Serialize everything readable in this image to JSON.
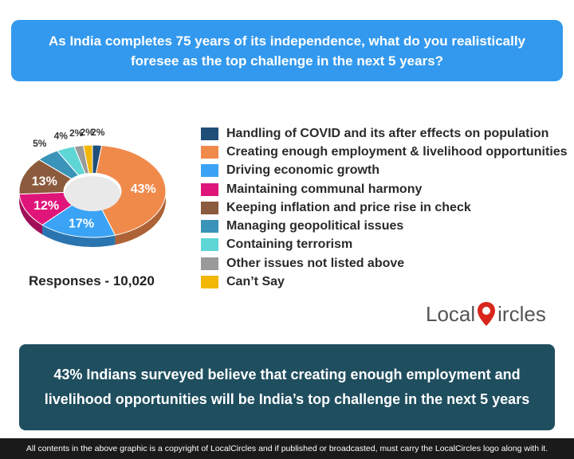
{
  "header": {
    "question": "As India completes 75 years of its independence, what do you realistically foresee as the top challenge in the next 5 years?"
  },
  "chart_data": {
    "type": "pie",
    "categories": [
      "Handling of COVID and its after effects on population",
      "Creating enough employment & livelihood opportunities",
      "Driving economic growth",
      "Maintaining communal harmony",
      "Keeping inflation and price rise in check",
      "Managing geopolitical issues",
      "Containing terrorism",
      "Other issues not listed above",
      "Can’t Say"
    ],
    "values": [
      2,
      43,
      17,
      12,
      13,
      5,
      4,
      2,
      2
    ],
    "data_labels": [
      "2%",
      "43%",
      "17%",
      "12%",
      "13%",
      "5%",
      "4%",
      "2%",
      "2%"
    ],
    "colors": [
      "#1f4e79",
      "#f08a4b",
      "#3aa3f5",
      "#e0157a",
      "#8c5a3c",
      "#3a93b8",
      "#5ed6d6",
      "#9a9a9a",
      "#f2b705"
    ],
    "legend_position": "right",
    "style": "3d-donut"
  },
  "responses_label": "Responses - 10,020",
  "logo": {
    "left": "Local",
    "right": "ircles",
    "icon": "map-pin-icon"
  },
  "finding": "43% Indians surveyed believe that creating enough employment and livelihood opportunities will be India’s top challenge in the next 5 years",
  "footer": "All contents in the above graphic is a copyright of LocalCircles and if published or broadcasted, must carry the LocalCircles logo along with it."
}
